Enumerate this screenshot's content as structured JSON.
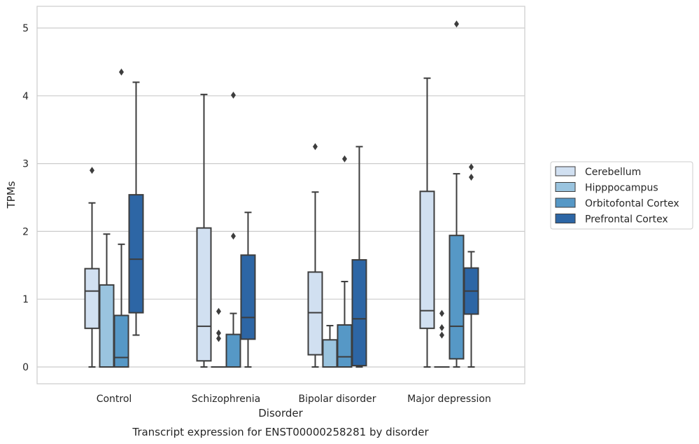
{
  "chart_data": {
    "type": "box",
    "title": "Transcript expression for ENST00000258281 by disorder",
    "xlabel": "Disorder",
    "ylabel": "TPMs",
    "categories": [
      "Control",
      "Schizophrenia",
      "Bipolar disorder",
      "Major depression"
    ],
    "ylim": [
      -0.25,
      5.32
    ],
    "yticks": [
      0,
      1,
      2,
      3,
      4,
      5
    ],
    "grid": true,
    "legend_position": "right",
    "series": [
      {
        "name": "Cerebellum",
        "color": "#d1e0f1",
        "boxes": [
          {
            "whisker_low": 0,
            "q1": 0.57,
            "median": 1.12,
            "q3": 1.45,
            "whisker_high": 2.42,
            "outliers": [
              2.9
            ]
          },
          {
            "whisker_low": 0,
            "q1": 0.09,
            "median": 0.6,
            "q3": 2.05,
            "whisker_high": 4.02,
            "outliers": []
          },
          {
            "whisker_low": 0,
            "q1": 0.18,
            "median": 0.8,
            "q3": 1.4,
            "whisker_high": 2.58,
            "outliers": [
              3.25
            ]
          },
          {
            "whisker_low": 0,
            "q1": 0.57,
            "median": 0.83,
            "q3": 2.59,
            "whisker_high": 4.26,
            "outliers": []
          }
        ]
      },
      {
        "name": "Hipppocampus",
        "color": "#9ac4df",
        "boxes": [
          {
            "whisker_low": 0,
            "q1": 0,
            "median": 0,
            "q3": 1.21,
            "whisker_high": 1.96,
            "outliers": []
          },
          {
            "whisker_low": 0,
            "q1": 0,
            "median": 0,
            "q3": 0,
            "whisker_high": 0,
            "outliers": [
              0.82,
              0.5,
              0.42
            ]
          },
          {
            "whisker_low": 0,
            "q1": 0,
            "median": 0,
            "q3": 0.4,
            "whisker_high": 0.61,
            "outliers": []
          },
          {
            "whisker_low": 0,
            "q1": 0,
            "median": 0,
            "q3": 0,
            "whisker_high": 0,
            "outliers": [
              0.79,
              0.58,
              0.47
            ]
          }
        ]
      },
      {
        "name": "Orbitofontal Cortex",
        "color": "#5698c6",
        "boxes": [
          {
            "whisker_low": 0,
            "q1": 0,
            "median": 0.14,
            "q3": 0.76,
            "whisker_high": 1.81,
            "outliers": [
              4.35
            ]
          },
          {
            "whisker_low": 0,
            "q1": 0,
            "median": 0,
            "q3": 0.48,
            "whisker_high": 0.79,
            "outliers": [
              4.01,
              1.93
            ]
          },
          {
            "whisker_low": 0,
            "q1": 0,
            "median": 0.15,
            "q3": 0.62,
            "whisker_high": 1.26,
            "outliers": [
              3.07
            ]
          },
          {
            "whisker_low": 0,
            "q1": 0.12,
            "median": 0.6,
            "q3": 1.94,
            "whisker_high": 2.85,
            "outliers": [
              5.06
            ]
          }
        ]
      },
      {
        "name": "Prefrontal Cortex",
        "color": "#2d66a5",
        "boxes": [
          {
            "whisker_low": 0.47,
            "q1": 0.8,
            "median": 1.59,
            "q3": 2.54,
            "whisker_high": 4.2,
            "outliers": []
          },
          {
            "whisker_low": 0,
            "q1": 0.41,
            "median": 0.73,
            "q3": 1.65,
            "whisker_high": 2.28,
            "outliers": []
          },
          {
            "whisker_low": 0,
            "q1": 0.02,
            "median": 0.71,
            "q3": 1.58,
            "whisker_high": 3.25,
            "outliers": []
          },
          {
            "whisker_low": 0,
            "q1": 0.78,
            "median": 1.12,
            "q3": 1.46,
            "whisker_high": 1.7,
            "outliers": [
              2.95,
              2.8
            ]
          }
        ]
      }
    ]
  }
}
